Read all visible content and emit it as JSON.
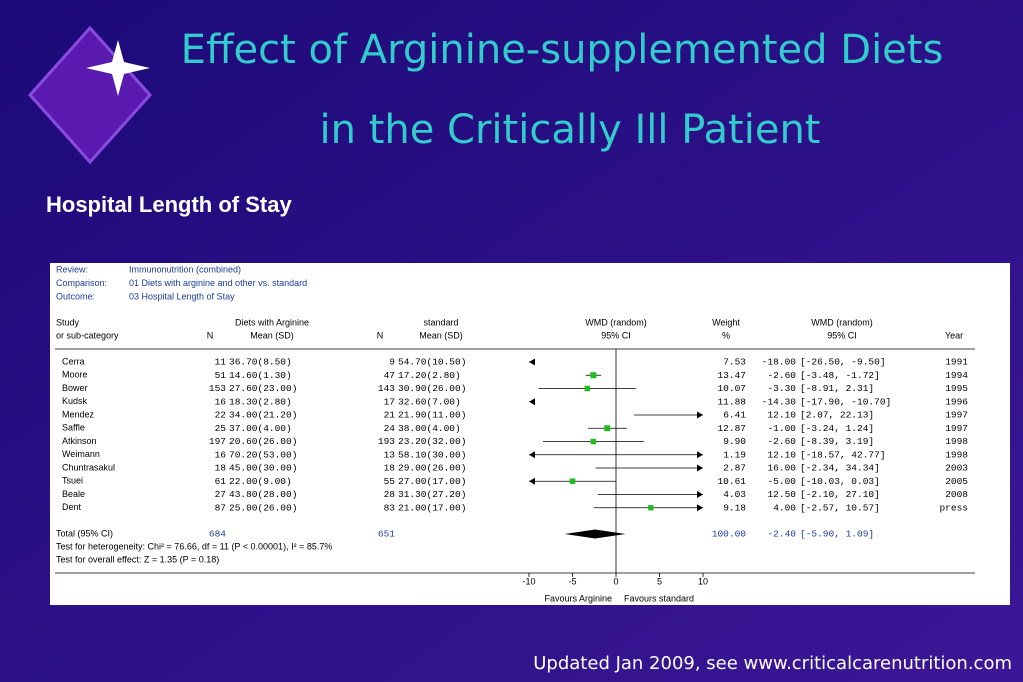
{
  "slide": {
    "title_lines": [
      "Effect of Arginine-supplemented Diets",
      "in the Critically Ill Patient"
    ],
    "subtitle": "Hospital Length of Stay",
    "footer": "Updated Jan 2009, see www.criticalcarenutrition.com"
  },
  "chart_data": {
    "type": "forest",
    "info": [
      [
        "Review:",
        "Immunonutrition (combined)"
      ],
      [
        "Comparison:",
        "01 Diets with arginine and other  vs. standard"
      ],
      [
        "Outcome:",
        "03 Hospital Length of Stay"
      ]
    ],
    "headers": [
      "Study",
      "or sub-category",
      "Diets with Arginine",
      "N",
      "Mean (SD)",
      "N",
      "standard",
      "Mean (SD)",
      "WMD (random)",
      "95% CI",
      "Weight",
      "%",
      "WMD (random)",
      "95% CI",
      "Year"
    ],
    "studies": [
      "Cerra",
      "Moore",
      "Bower",
      "Kudsk",
      "Mendez",
      "Saffle",
      "Atkinson",
      "Weimann",
      "Chuntrasakul",
      "Tsuei",
      "Beale",
      "Dent"
    ],
    "n1": [
      11,
      51,
      153,
      16,
      22,
      25,
      197,
      16,
      18,
      61,
      27,
      87
    ],
    "mean1": [
      "36.70(8.50)",
      "14.60(1.30)",
      "27.60(23.00)",
      "18.30(2.80)",
      "34.00(21.20)",
      "37.00(4.00)",
      "20.60(26.00)",
      "70.20(53.00)",
      "45.00(30.00)",
      "22.00(9.00)",
      "43.80(28.00)",
      "25.00(26.00)"
    ],
    "n2": [
      9,
      47,
      143,
      17,
      21,
      24,
      193,
      13,
      18,
      55,
      28,
      83
    ],
    "mean2": [
      "54.70(10.50)",
      "17.20(2.80)",
      "30.90(26.00)",
      "32.60(7.00)",
      "21.90(11.00)",
      "38.00(4.00)",
      "23.20(32.00)",
      "58.10(30.00)",
      "29.00(26.00)",
      "27.00(17.00)",
      "31.30(27.20)",
      "21.00(17.00)"
    ],
    "weight": {
      "values": [
        7.53,
        13.47,
        10.07,
        11.88,
        6.41,
        12.87,
        9.9,
        1.19,
        2.87,
        10.61,
        4.03,
        9.18
      ],
      "value_labels": [
        "7.53",
        "13.47",
        "10.07",
        "11.88",
        "6.41",
        "12.87",
        "9.90",
        "1.19",
        "2.87",
        "10.61",
        "4.03",
        "9.18"
      ]
    },
    "wmd": {
      "values": [
        -18,
        -2.6,
        -3.3,
        -14.3,
        12.1,
        -1,
        -2.6,
        12.1,
        16,
        -5,
        12.5,
        4
      ],
      "value_labels": [
        "-18.00",
        "-2.60",
        "-3.30",
        "-14.30",
        "12.10",
        "-1.00",
        "-2.60",
        "12.10",
        "16.00",
        "-5.00",
        "12.50",
        "4.00"
      ]
    },
    "ci_low": [
      -26.5,
      -3.48,
      -8.91,
      -17.9,
      2.07,
      -3.24,
      -8.39,
      -18.57,
      -2.34,
      -10.03,
      -2.1,
      -2.57
    ],
    "ci_high": [
      -9.5,
      -1.72,
      2.31,
      -10.7,
      22.13,
      1.24,
      3.19,
      42.77,
      34.34,
      0.03,
      27.1,
      10.57
    ],
    "ci_labels": [
      "[-26.50, -9.50]",
      "[-3.48, -1.72]",
      "[-8.91, 2.31]",
      "[-17.90, -10.70]",
      "[2.07, 22.13]",
      "[-3.24, 1.24]",
      "[-8.39, 3.19]",
      "[-18.57, 42.77]",
      "[-2.34, 34.34]",
      "[-10.03, 0.03]",
      "[-2.10, 27.10]",
      "[-2.57, 10.57]"
    ],
    "years": [
      "1991",
      "1994",
      "1995",
      "1996",
      "1997",
      "1997",
      "1998",
      "1998",
      "2003",
      "2005",
      "2008",
      "press"
    ],
    "total": {
      "label": "Total (95% CI)",
      "n1": 684,
      "n2": 651,
      "weight": "100.00",
      "wmd": -2.4,
      "wmd_label": "-2.40",
      "ci_low": -5.9,
      "ci_high": 1.09,
      "ci_label": "[-5.90, 1.09]"
    },
    "notes": [
      "Test for heterogeneity: Chi² = 76.66, df = 11 (P < 0.00001), I² = 85.7%",
      "Test for overall effect: Z = 1.35 (P = 0.18)"
    ],
    "xlim": [
      -10,
      10
    ],
    "xticks": [
      -10,
      -5,
      0,
      5,
      10
    ],
    "xlabels": [
      "Favours Arginine",
      "Favours standard"
    ],
    "box_color": "#22bb22"
  }
}
